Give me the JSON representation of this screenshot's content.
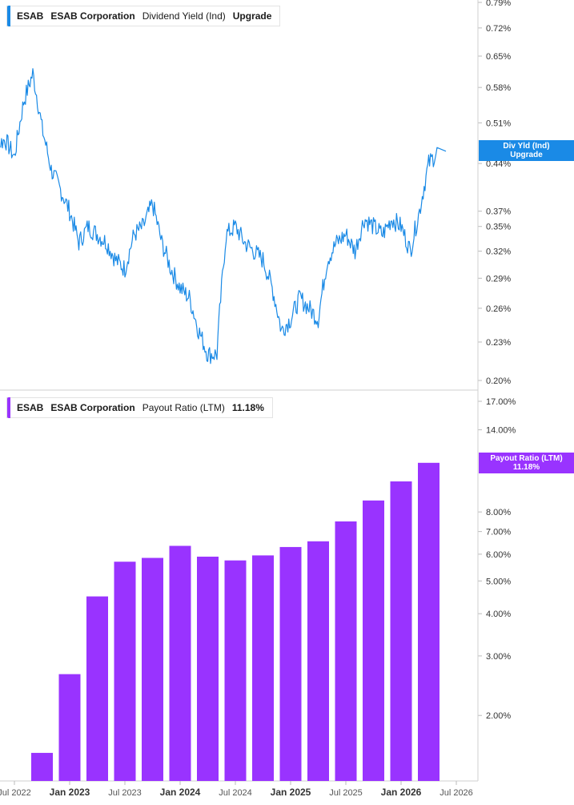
{
  "top_panel": {
    "legend": {
      "ticker": "ESAB",
      "company": "ESAB Corporation",
      "metric": "Dividend Yield (Ind)",
      "value": "Upgrade"
    },
    "tag": {
      "line1": "Div Yld (Ind)",
      "line2": "Upgrade"
    },
    "color": "#1a8ae6"
  },
  "bottom_panel": {
    "legend": {
      "ticker": "ESAB",
      "company": "ESAB Corporation",
      "metric": "Payout Ratio (LTM)",
      "value": "11.18%"
    },
    "tag": {
      "line1": "Payout Ratio (LTM)",
      "line2": "11.18%"
    },
    "color": "#9933ff"
  },
  "x_axis_labels": [
    {
      "label": "Jul 2022",
      "bold": false
    },
    {
      "label": "Jan 2023",
      "bold": true
    },
    {
      "label": "Jul 2023",
      "bold": false
    },
    {
      "label": "Jan 2024",
      "bold": true
    },
    {
      "label": "Jul 2024",
      "bold": false
    },
    {
      "label": "Jan 2025",
      "bold": true
    },
    {
      "label": "Jul 2025",
      "bold": false
    },
    {
      "label": "Jan 2026",
      "bold": true
    },
    {
      "label": "Jul 2026",
      "bold": false
    }
  ],
  "chart_data": [
    {
      "type": "line",
      "scale": "log",
      "ylabel": "",
      "y_ticks": [
        "0.79%",
        "0.72%",
        "0.65%",
        "0.58%",
        "0.51%",
        "0.44%",
        "0.37%",
        "0.35%",
        "0.32%",
        "0.29%",
        "0.26%",
        "0.23%",
        "0.20%"
      ],
      "ylim": [
        0.2,
        0.79
      ],
      "series": [
        {
          "x": [
            "2022-04",
            "2022-05",
            "2022-06",
            "2022-07",
            "2022-08",
            "2022-09",
            "2022-10",
            "2022-11",
            "2022-12",
            "2023-01",
            "2023-02",
            "2023-03",
            "2023-04",
            "2023-05",
            "2023-06",
            "2023-07",
            "2023-08",
            "2023-09",
            "2023-10",
            "2023-11",
            "2023-12",
            "2024-01",
            "2024-02",
            "2024-03",
            "2024-04",
            "2024-05",
            "2024-06",
            "2024-07",
            "2024-08",
            "2024-09",
            "2024-10",
            "2024-11",
            "2024-12",
            "2025-01",
            "2025-02",
            "2025-03",
            "2025-04",
            "2025-05",
            "2025-06",
            "2025-07",
            "2025-08",
            "2025-09",
            "2025-10",
            "2025-11",
            "2025-12",
            "2026-01",
            "2026-02",
            "2026-03",
            "2026-04",
            "2026-05"
          ],
          "values": [
            0.41,
            0.47,
            0.48,
            0.45,
            0.55,
            0.61,
            0.5,
            0.43,
            0.4,
            0.37,
            0.33,
            0.35,
            0.34,
            0.33,
            0.31,
            0.3,
            0.34,
            0.35,
            0.38,
            0.33,
            0.3,
            0.28,
            0.27,
            0.24,
            0.22,
            0.22,
            0.34,
            0.35,
            0.33,
            0.32,
            0.31,
            0.28,
            0.24,
            0.25,
            0.27,
            0.26,
            0.25,
            0.31,
            0.33,
            0.34,
            0.32,
            0.36,
            0.35,
            0.34,
            0.36,
            0.35,
            0.32,
            0.37,
            0.44,
            0.46
          ]
        }
      ]
    },
    {
      "type": "bar",
      "scale": "log",
      "ylabel": "",
      "y_ticks": [
        "17.00%",
        "14.00%",
        "8.00%",
        "7.00%",
        "6.00%",
        "5.00%",
        "4.00%",
        "3.00%",
        "2.00%"
      ],
      "ylim": [
        1.28,
        17.0
      ],
      "categories": [
        "Sep 2022",
        "Dec 2022",
        "Mar 2023",
        "Jun 2023",
        "Sep 2023",
        "Dec 2023",
        "Mar 2024",
        "Jun 2024",
        "Sep 2024",
        "Dec 2024",
        "Mar 2025",
        "Jun 2025",
        "Sep 2025",
        "Dec 2025",
        "Mar 2026"
      ],
      "values": [
        1.55,
        2.65,
        4.5,
        5.7,
        5.85,
        6.35,
        5.9,
        5.75,
        5.95,
        6.3,
        6.55,
        7.5,
        8.65,
        9.85,
        11.18
      ]
    }
  ]
}
